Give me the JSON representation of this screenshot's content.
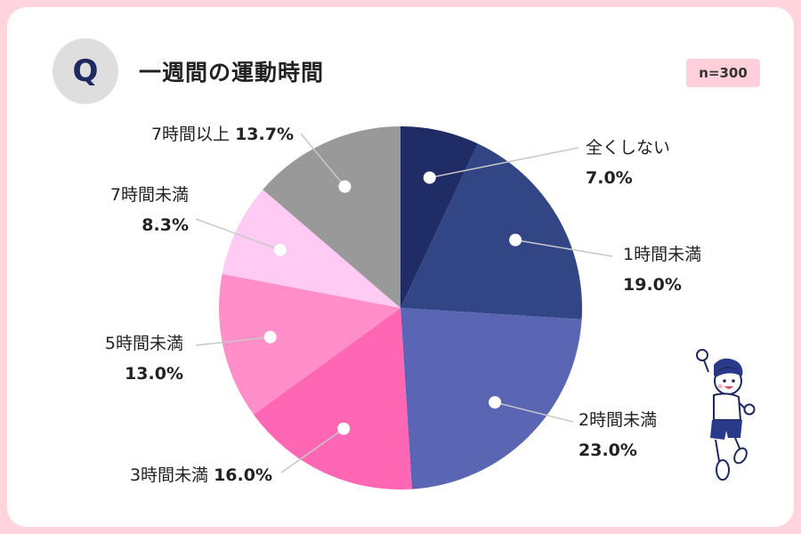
{
  "header": {
    "q_label": "Q",
    "title": "一週間の運動時間",
    "sample": "n=300"
  },
  "chart_data": {
    "type": "pie",
    "start_angle_deg": 0,
    "direction": "clockwise",
    "slices": [
      {
        "label": "全くしない",
        "value": 7.0,
        "display": "7.0%",
        "color": "#1f2c66"
      },
      {
        "label": "1時間未満",
        "value": 19.0,
        "display": "19.0%",
        "color": "#324584"
      },
      {
        "label": "2時間未満",
        "value": 23.0,
        "display": "23.0%",
        "color": "#5a66b4"
      },
      {
        "label": "3時間未満",
        "value": 16.0,
        "display": "16.0%",
        "color": "#ff66b3"
      },
      {
        "label": "5時間未満",
        "value": 13.0,
        "display": "13.0%",
        "color": "#ff8ec9"
      },
      {
        "label": "7時間未満",
        "value": 8.3,
        "display": "8.3%",
        "color": "#ffcaf3"
      },
      {
        "label": "7時間以上",
        "value": 13.7,
        "display": "13.7%",
        "color": "#999999"
      }
    ]
  },
  "illustration": {
    "icon": "cheering-boy-icon"
  }
}
